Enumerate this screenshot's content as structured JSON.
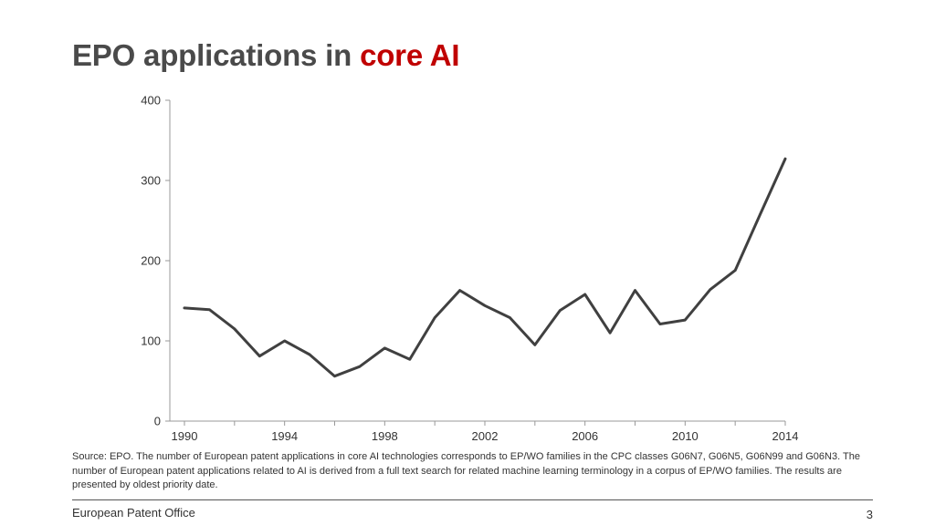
{
  "slide": {
    "title_main": "EPO applications in ",
    "title_accent": "core AI",
    "source": "Source: EPO. The number of European patent applications in core AI technologies corresponds to EP/WO families in the CPC classes G06N7, G06N5, G06N99 and G06N3. The number of European patent applications related to AI is derived from a full text search for related machine learning terminology in a corpus of EP/WO families. The results are presented by oldest priority date.",
    "footer_left": "European Patent Office",
    "page_number": "3"
  },
  "colors": {
    "title": "#4a4a4a",
    "accent": "#c00000",
    "line": "#404040",
    "axis": "#999999"
  },
  "chart_data": {
    "type": "line",
    "title": "",
    "xlabel": "",
    "ylabel": "",
    "xlim": [
      1990,
      2014
    ],
    "ylim": [
      0,
      400
    ],
    "x_ticks": [
      1990,
      1994,
      1998,
      2002,
      2006,
      2010,
      2014
    ],
    "y_ticks": [
      0,
      100,
      200,
      300,
      400
    ],
    "grid": false,
    "legend": "none",
    "series": [
      {
        "x": [
          1990,
          1991,
          1992,
          1993,
          1994,
          1995,
          1996,
          1997,
          1998,
          1999,
          2000,
          2001,
          2002,
          2003,
          2004,
          2005,
          2006,
          2007,
          2008,
          2009,
          2010,
          2011,
          2012,
          2013,
          2014
        ],
        "values": [
          141,
          139,
          115,
          81,
          100,
          83,
          56,
          68,
          91,
          77,
          129,
          163,
          144,
          129,
          95,
          138,
          158,
          110,
          163,
          121,
          126,
          164,
          188,
          258,
          327
        ]
      }
    ]
  }
}
